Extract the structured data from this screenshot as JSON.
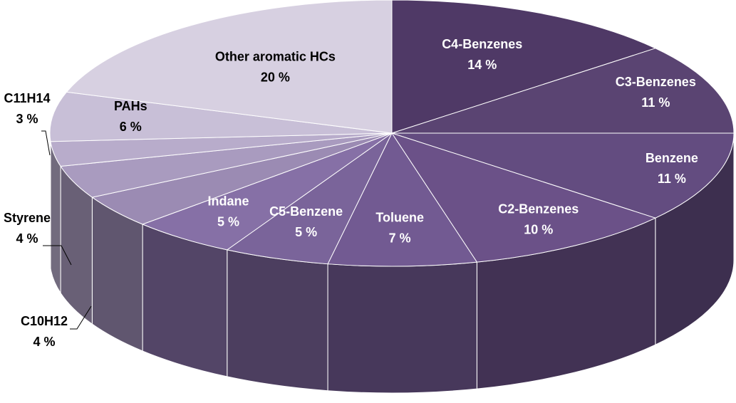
{
  "chart_data": {
    "type": "pie",
    "title": "",
    "slices": [
      {
        "name": "C4-Benzenes",
        "value": 14,
        "value_label": "14 %",
        "color": "#4f3966",
        "label_color": "#ffffff"
      },
      {
        "name": "C3-Benzenes",
        "value": 11,
        "value_label": "11 %",
        "color": "#5a4472",
        "label_color": "#ffffff"
      },
      {
        "name": "Benzene",
        "value": 11,
        "value_label": "11 %",
        "color": "#634c80",
        "label_color": "#ffffff"
      },
      {
        "name": "C2-Benzenes",
        "value": 10,
        "value_label": "10 %",
        "color": "#6b5188",
        "label_color": "#ffffff"
      },
      {
        "name": "Toluene",
        "value": 7,
        "value_label": "7 %",
        "color": "#725a92",
        "label_color": "#ffffff"
      },
      {
        "name": "C5-Benzene",
        "value": 5,
        "value_label": "5 %",
        "color": "#7a649a",
        "label_color": "#ffffff"
      },
      {
        "name": "Indane",
        "value": 5,
        "value_label": "5  %",
        "color": "#8670a6",
        "label_color": "#ffffff"
      },
      {
        "name": "C10H12",
        "value": 4,
        "value_label": "4 %",
        "color": "#9b8bb3",
        "label_color": "#000000"
      },
      {
        "name": "Styrene",
        "value": 4,
        "value_label": "4 %",
        "color": "#a99bbf",
        "label_color": "#000000"
      },
      {
        "name": "C11H14",
        "value": 3,
        "value_label": "3 %",
        "color": "#b8accb",
        "label_color": "#000000"
      },
      {
        "name": "PAHs",
        "value": 6,
        "value_label": "6 %",
        "color": "#c8bfd7",
        "label_color": "#000000"
      },
      {
        "name": "Other aromatic HCs",
        "value": 20,
        "value_label": "20 %",
        "color": "#d7d0e1",
        "label_color": "#000000"
      }
    ],
    "legend": "none",
    "style": "3d-exploded-none"
  }
}
